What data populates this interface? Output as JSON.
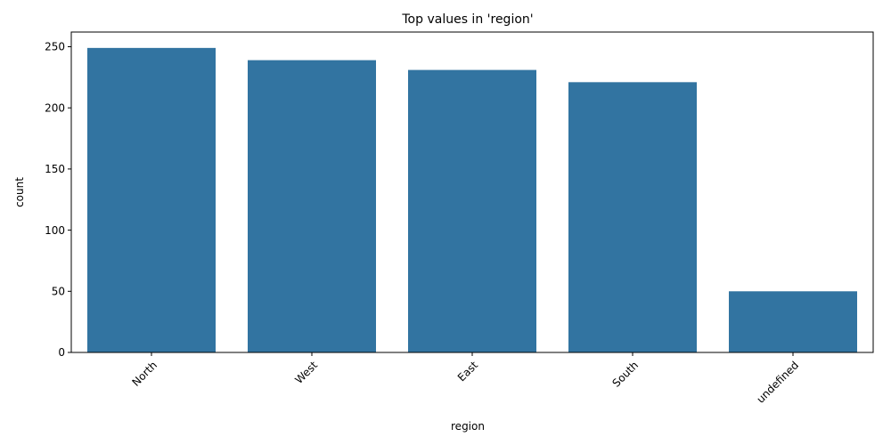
{
  "chart_data": {
    "type": "bar",
    "title": "Top values in 'region'",
    "xlabel": "region",
    "ylabel": "count",
    "categories": [
      "North",
      "West",
      "East",
      "South",
      "undefined"
    ],
    "values": [
      249,
      239,
      231,
      221,
      50
    ],
    "ylim": [
      0,
      262
    ],
    "yticks": [
      0,
      50,
      100,
      150,
      200,
      250
    ],
    "bar_color": "#3274a1",
    "grid": false,
    "xtick_rotation": 45
  }
}
